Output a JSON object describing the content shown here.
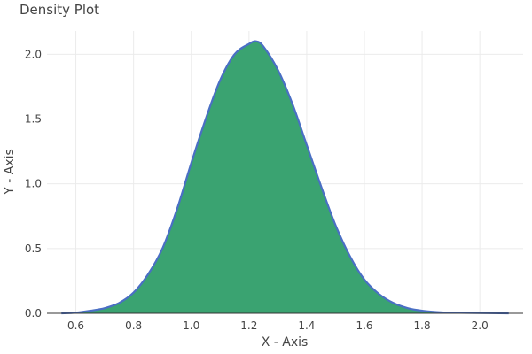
{
  "chart_data": {
    "type": "area",
    "title": "Density Plot",
    "xlabel": "X - Axis",
    "ylabel": "Y - Axis",
    "xlim": [
      0.5,
      2.15
    ],
    "ylim": [
      0,
      2.18
    ],
    "x_ticks": [
      0.6,
      0.8,
      1.0,
      1.2,
      1.4,
      1.6,
      1.8,
      2.0
    ],
    "x_tick_labels": [
      "0.6",
      "0.8",
      "1.0",
      "1.2",
      "1.4",
      "1.6",
      "1.8",
      "2.0"
    ],
    "y_ticks": [
      0.0,
      0.5,
      1.0,
      1.5,
      2.0
    ],
    "y_tick_labels": [
      "0.0",
      "0.5",
      "1.0",
      "1.5",
      "2.0"
    ],
    "grid": true,
    "fill_color": "#3aa371",
    "line_color": "#4a6fc4",
    "series": [
      {
        "x": [
          0.55,
          0.6,
          0.65,
          0.7,
          0.75,
          0.8,
          0.85,
          0.9,
          0.95,
          1.0,
          1.05,
          1.1,
          1.15,
          1.2,
          1.225,
          1.25,
          1.3,
          1.35,
          1.4,
          1.45,
          1.5,
          1.55,
          1.6,
          1.65,
          1.7,
          1.75,
          1.8,
          1.85,
          1.9,
          2.0,
          2.1
        ],
        "values": [
          0.0,
          0.005,
          0.02,
          0.04,
          0.08,
          0.16,
          0.3,
          0.5,
          0.8,
          1.16,
          1.5,
          1.8,
          2.0,
          2.08,
          2.1,
          2.06,
          1.88,
          1.62,
          1.3,
          0.98,
          0.68,
          0.44,
          0.26,
          0.15,
          0.08,
          0.04,
          0.02,
          0.01,
          0.005,
          0.002,
          0.0
        ]
      }
    ]
  }
}
